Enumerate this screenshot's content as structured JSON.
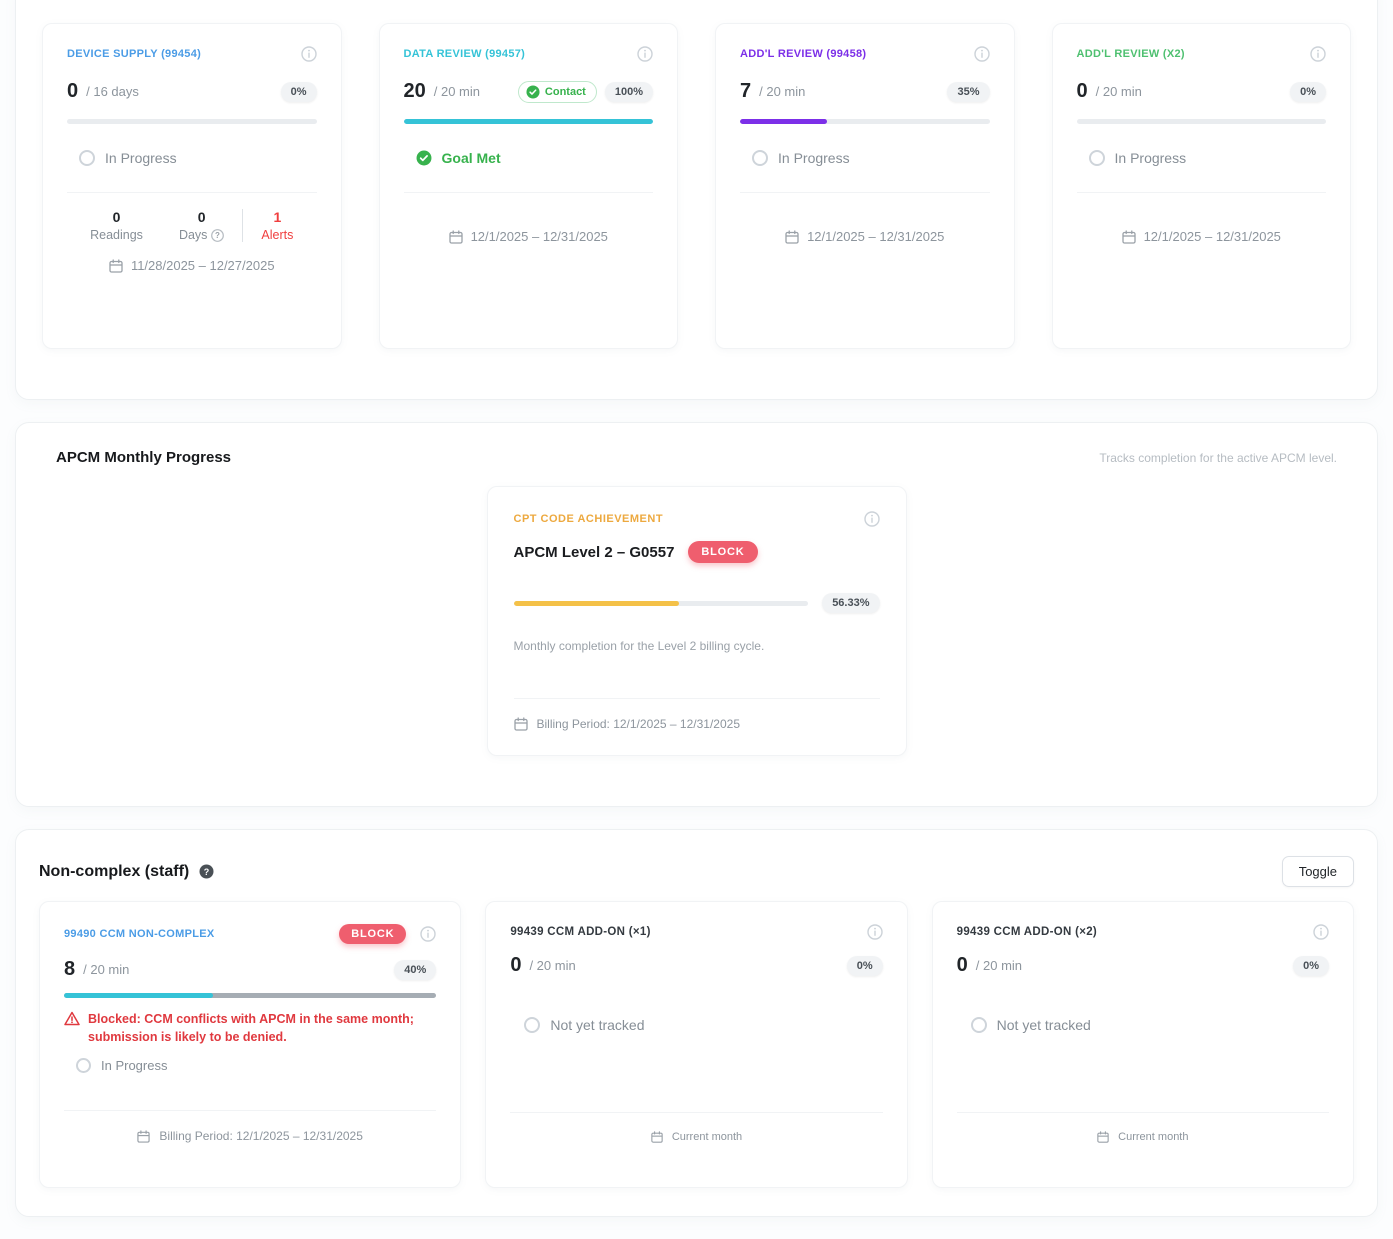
{
  "vitals_panel": {
    "cards": [
      {
        "title": "DEVICE SUPPLY (99454)",
        "accent": "#4b9ce6",
        "value": "0",
        "target": "/ 16 days",
        "percent_label": "0%",
        "progress_pct": 0,
        "bar_color": "#4b9ce6",
        "status_label": "In Progress",
        "stats": [
          {
            "value": "0",
            "label": "Readings"
          },
          {
            "value": "0",
            "label": "Days"
          },
          {
            "value": "1",
            "label": "Alerts"
          }
        ],
        "alerts_color": "#f03e3e",
        "date_range": "11/28/2025 – 12/27/2025"
      },
      {
        "title": "DATA REVIEW (99457)",
        "accent": "#35c3d7",
        "value": "20",
        "target": "/ 20 min",
        "contact_label": "Contact",
        "percent_label": "100%",
        "progress_pct": 100,
        "bar_color": "#35c3d7",
        "goal_label": "Goal Met",
        "goal_color": "#37b24d",
        "date_range": "12/1/2025 – 12/31/2025"
      },
      {
        "title": "ADD'L REVIEW (99458)",
        "accent": "#7c2fe8",
        "value": "7",
        "target": "/ 20 min",
        "percent_label": "35%",
        "progress_pct": 35,
        "bar_color": "#7c2fe8",
        "status_label": "In Progress",
        "date_range": "12/1/2025 – 12/31/2025"
      },
      {
        "title": "ADD'L REVIEW (X2)",
        "accent": "#4ec070",
        "value": "0",
        "target": "/ 20 min",
        "percent_label": "0%",
        "progress_pct": 0,
        "bar_color": "#4ec070",
        "status_label": "In Progress",
        "date_range": "12/1/2025 – 12/31/2025"
      }
    ]
  },
  "apcm_panel": {
    "heading": "APCM Monthly Progress",
    "subtext": "Tracks completion for the active APCM level.",
    "card": {
      "title": "CPT CODE ACHIEVEMENT",
      "accent": "#eda93f",
      "name": "APCM Level 2 – G0557",
      "badge_label": "BLOCK",
      "badge_color": "#ef5e6e",
      "percent_label": "56.33%",
      "progress_pct": 56.33,
      "bar_color": "#f4c148",
      "description": "Monthly completion for the Level 2 billing cycle.",
      "footer": "Billing Period: 12/1/2025 – 12/31/2025"
    }
  },
  "ccm_panel": {
    "heading": "Non-complex (staff)",
    "toggle_label": "Toggle",
    "cards": [
      {
        "title": "99490 CCM NON-COMPLEX",
        "accent": "#4b9ce6",
        "badge_label": "BLOCK",
        "badge_color": "#ef5e6e",
        "value": "8",
        "target": "/ 20 min",
        "percent_label": "40%",
        "progress_pct": 40,
        "bar_color": "#35c3d7",
        "track_color": "#a6adb4",
        "warning": "Blocked: CCM conflicts with APCM in the same month; submission is likely to be denied.",
        "warning_color": "#e0393f",
        "status_label": "In Progress",
        "footer": "Billing Period: 12/1/2025 – 12/31/2025"
      },
      {
        "title": "99439 CCM ADD-ON (×1)",
        "value": "0",
        "target": "/ 20 min",
        "percent_label": "0%",
        "progress_pct": 0,
        "status_label": "Not yet tracked",
        "footer": "Current month"
      },
      {
        "title": "99439 CCM ADD-ON (×2)",
        "value": "0",
        "target": "/ 20 min",
        "percent_label": "0%",
        "progress_pct": 0,
        "status_label": "Not yet tracked",
        "footer": "Current month"
      }
    ]
  }
}
